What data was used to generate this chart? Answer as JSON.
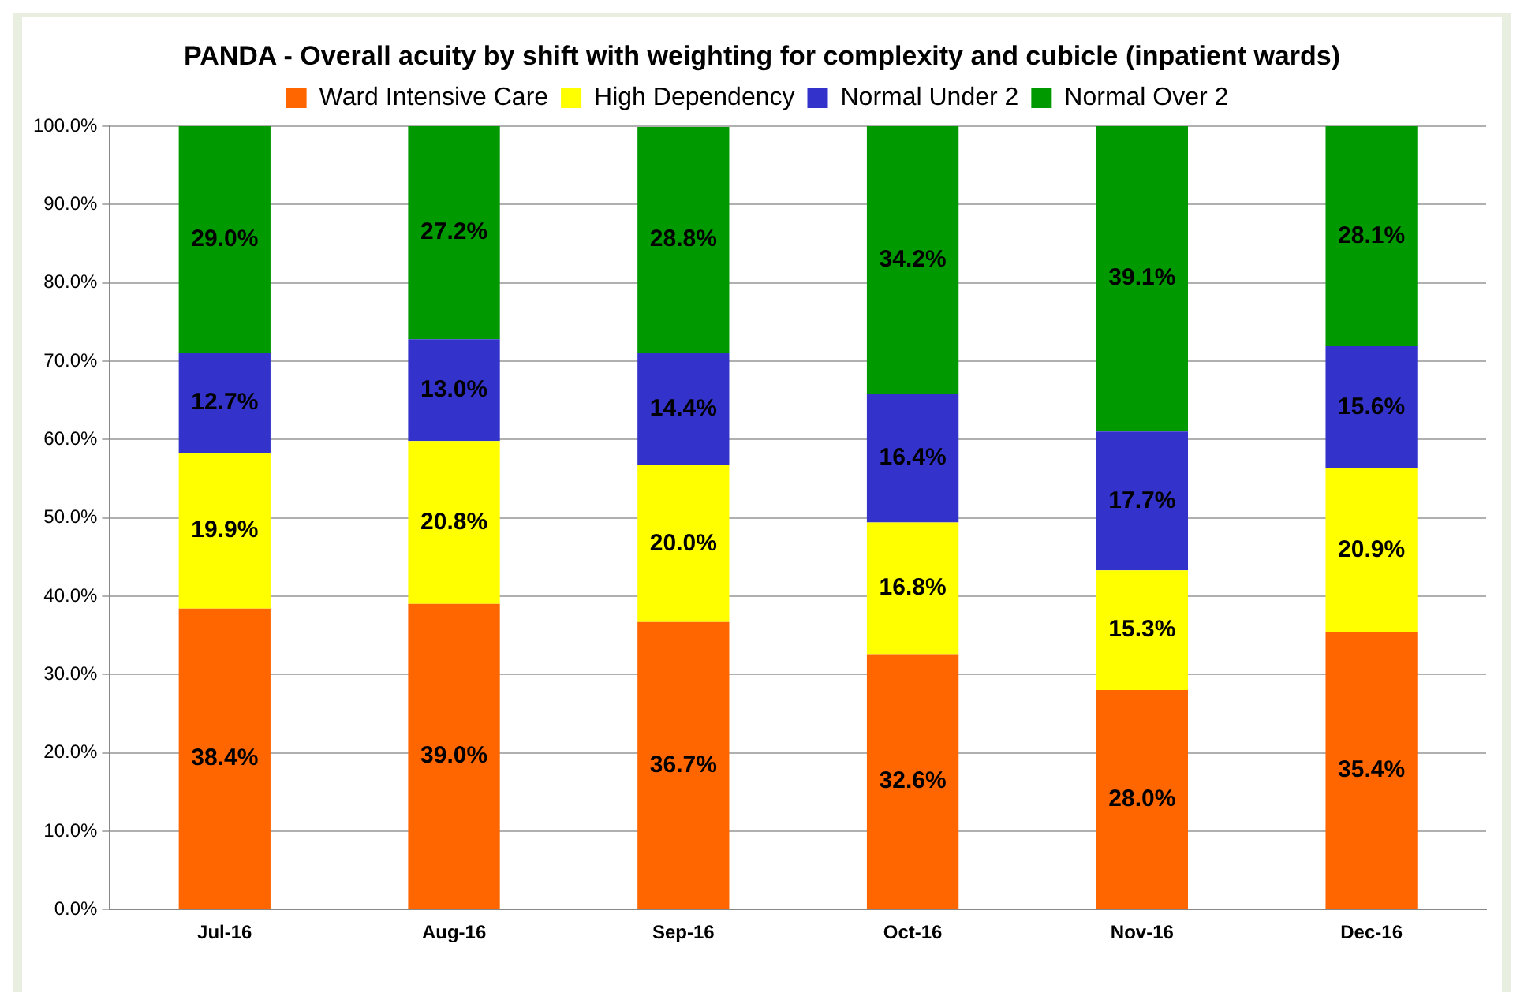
{
  "chart_data": {
    "type": "bar",
    "title": "PANDA  - Overall acuity by shift with weighting for complexity and cubicle (inpatient wards)",
    "categories": [
      "Jul-16",
      "Aug-16",
      "Sep-16",
      "Oct-16",
      "Nov-16",
      "Dec-16"
    ],
    "stacked": true,
    "legend": "top",
    "grid": "y",
    "ylim": [
      0,
      100
    ],
    "yticks": [
      {
        "value": 0,
        "label": "0.0%"
      },
      {
        "value": 10,
        "label": "10.0%"
      },
      {
        "value": 20,
        "label": "20.0%"
      },
      {
        "value": 30,
        "label": "30.0%"
      },
      {
        "value": 40,
        "label": "40.0%"
      },
      {
        "value": 50,
        "label": "50.0%"
      },
      {
        "value": 60,
        "label": "60.0%"
      },
      {
        "value": 70,
        "label": "70.0%"
      },
      {
        "value": 80,
        "label": "80.0%"
      },
      {
        "value": 90,
        "label": "90.0%"
      },
      {
        "value": 100,
        "label": "100.0%"
      }
    ],
    "series": [
      {
        "name": "Ward Intensive Care",
        "color": "#ff6600",
        "values": [
          38.4,
          39.0,
          36.7,
          32.6,
          28.0,
          35.4
        ],
        "value_labels": [
          "38.4%",
          "39.0%",
          "36.7%",
          "32.6%",
          "28.0%",
          "35.4%"
        ]
      },
      {
        "name": "High Dependency",
        "color": "#ffff00",
        "values": [
          19.9,
          20.8,
          20.0,
          16.8,
          15.3,
          20.9
        ],
        "value_labels": [
          "19.9%",
          "20.8%",
          "20.0%",
          "16.8%",
          "15.3%",
          "20.9%"
        ]
      },
      {
        "name": "Normal Under 2",
        "color": "#3333cc",
        "values": [
          12.7,
          13.0,
          14.4,
          16.4,
          17.7,
          15.6
        ],
        "value_labels": [
          "12.7%",
          "13.0%",
          "14.4%",
          "16.4%",
          "17.7%",
          "15.6%"
        ]
      },
      {
        "name": "Normal Over 2",
        "color": "#009900",
        "values": [
          29.0,
          27.2,
          28.8,
          34.2,
          39.1,
          28.1
        ],
        "value_labels": [
          "29.0%",
          "27.2%",
          "28.8%",
          "34.2%",
          "39.1%",
          "28.1%"
        ]
      }
    ]
  }
}
